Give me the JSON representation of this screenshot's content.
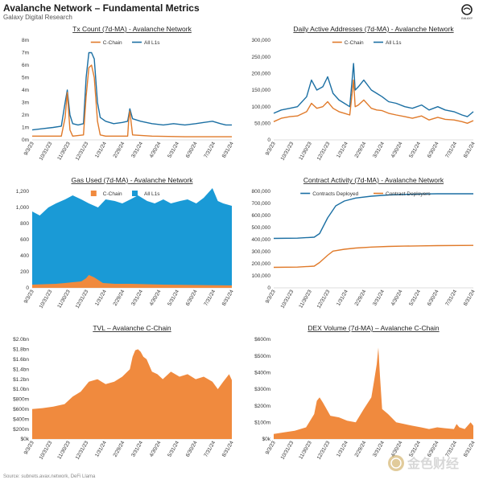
{
  "header": {
    "title": "Avalanche Network – Fundamental Metrics",
    "subtitle": "Galaxy Digital Research",
    "logo_icon": "galaxy-logo-icon",
    "logo_text": "GALAXY"
  },
  "footer": {
    "source": "Source: subnets.avax.network, DeFi Llama"
  },
  "watermark": {
    "text": "金色财经",
    "icon": "golden-coin-icon"
  },
  "colors": {
    "blue": "#1b6fa3",
    "orange": "#e07a2a",
    "fill_blue": "#1a9ad6",
    "fill_orange": "#f08a3e"
  },
  "date_ticks": [
    "9/3/23",
    "10/31/23",
    "11/30/23",
    "12/31/23",
    "1/31/24",
    "2/29/24",
    "3/31/24",
    "4/30/24",
    "5/31/24",
    "6/30/24",
    "7/31/24",
    "8/31/24"
  ],
  "chart_data": [
    {
      "id": "tx",
      "type": "line",
      "title": "Tx Count (7d-MA) - Avalanche Network",
      "x_range": [
        "2023-09-01",
        "2024-09-05"
      ],
      "y_ticks": [
        "0m",
        "1m",
        "2m",
        "3m",
        "4m",
        "5m",
        "6m",
        "7m",
        "8m"
      ],
      "ylim": [
        0,
        8000000
      ],
      "legend": [
        "C-Chain",
        "All L1s"
      ],
      "legend_placement": "top-center",
      "series": [
        {
          "name": "All L1s",
          "color": "#1b6fa3",
          "x": [
            "2023-09-01",
            "2023-09-20",
            "2023-10-10",
            "2023-10-25",
            "2023-11-01",
            "2023-11-05",
            "2023-11-10",
            "2023-11-15",
            "2023-11-25",
            "2023-12-05",
            "2023-12-10",
            "2023-12-15",
            "2023-12-20",
            "2023-12-25",
            "2023-12-31",
            "2024-01-05",
            "2024-01-15",
            "2024-01-30",
            "2024-02-15",
            "2024-02-25",
            "2024-02-29",
            "2024-03-05",
            "2024-03-20",
            "2024-04-10",
            "2024-05-01",
            "2024-05-20",
            "2024-06-10",
            "2024-06-30",
            "2024-07-15",
            "2024-07-31",
            "2024-08-15",
            "2024-08-25",
            "2024-09-05"
          ],
          "values": [
            800000,
            900000,
            1000000,
            1100000,
            3000000,
            4000000,
            2000000,
            1300000,
            1200000,
            1300000,
            5000000,
            7000000,
            7000000,
            6500000,
            3000000,
            1800000,
            1500000,
            1300000,
            1400000,
            1500000,
            2500000,
            1700000,
            1500000,
            1300000,
            1200000,
            1300000,
            1200000,
            1300000,
            1400000,
            1500000,
            1300000,
            1200000,
            1200000
          ]
        },
        {
          "name": "C-Chain",
          "color": "#e07a2a",
          "x": [
            "2023-09-01",
            "2023-10-25",
            "2023-11-01",
            "2023-11-05",
            "2023-11-10",
            "2023-11-15",
            "2023-12-05",
            "2023-12-10",
            "2023-12-15",
            "2023-12-20",
            "2023-12-25",
            "2023-12-31",
            "2024-01-05",
            "2024-01-15",
            "2024-02-25",
            "2024-02-27",
            "2024-02-29",
            "2024-03-05",
            "2024-04-10",
            "2024-06-10",
            "2024-09-05"
          ],
          "values": [
            300000,
            300000,
            1800000,
            3800000,
            800000,
            300000,
            400000,
            3500000,
            5800000,
            6000000,
            5000000,
            1500000,
            400000,
            300000,
            300000,
            1700000,
            2300000,
            400000,
            300000,
            250000,
            250000
          ]
        }
      ]
    },
    {
      "id": "daa",
      "type": "line",
      "title": "Daily Active Addresses (7d-MA) - Avalanche Network",
      "x_range": [
        "2023-09-01",
        "2024-09-05"
      ],
      "y_ticks": [
        "0",
        "50,000",
        "100,000",
        "150,000",
        "200,000",
        "250,000",
        "300,000"
      ],
      "ylim": [
        0,
        300000
      ],
      "legend": [
        "C-Chain",
        "All L1s"
      ],
      "legend_placement": "top-center",
      "series": [
        {
          "name": "All L1s",
          "color": "#1b6fa3",
          "x": [
            "2023-09-01",
            "2023-09-15",
            "2023-10-01",
            "2023-10-15",
            "2023-11-01",
            "2023-11-10",
            "2023-11-20",
            "2023-12-01",
            "2023-12-10",
            "2023-12-20",
            "2023-12-31",
            "2024-01-10",
            "2024-01-20",
            "2024-01-27",
            "2024-01-30",
            "2024-02-05",
            "2024-02-15",
            "2024-02-29",
            "2024-03-10",
            "2024-03-20",
            "2024-04-01",
            "2024-04-15",
            "2024-05-01",
            "2024-05-15",
            "2024-06-01",
            "2024-06-15",
            "2024-07-01",
            "2024-07-15",
            "2024-07-31",
            "2024-08-15",
            "2024-08-25",
            "2024-09-05"
          ],
          "values": [
            80000,
            90000,
            95000,
            100000,
            130000,
            180000,
            150000,
            160000,
            190000,
            140000,
            120000,
            110000,
            100000,
            230000,
            150000,
            160000,
            180000,
            150000,
            140000,
            130000,
            115000,
            110000,
            100000,
            95000,
            105000,
            90000,
            100000,
            90000,
            85000,
            75000,
            70000,
            85000
          ]
        },
        {
          "name": "C-Chain",
          "color": "#e07a2a",
          "x": [
            "2023-09-01",
            "2023-09-15",
            "2023-10-01",
            "2023-10-15",
            "2023-11-01",
            "2023-11-10",
            "2023-11-20",
            "2023-12-01",
            "2023-12-10",
            "2023-12-20",
            "2023-12-31",
            "2024-01-10",
            "2024-01-20",
            "2024-01-27",
            "2024-01-30",
            "2024-02-05",
            "2024-02-15",
            "2024-02-29",
            "2024-03-10",
            "2024-03-20",
            "2024-04-01",
            "2024-04-15",
            "2024-05-01",
            "2024-05-15",
            "2024-06-01",
            "2024-06-15",
            "2024-07-01",
            "2024-07-15",
            "2024-07-31",
            "2024-08-15",
            "2024-08-25",
            "2024-09-05"
          ],
          "values": [
            55000,
            65000,
            70000,
            72000,
            85000,
            110000,
            95000,
            100000,
            115000,
            95000,
            85000,
            80000,
            75000,
            180000,
            100000,
            105000,
            120000,
            95000,
            90000,
            88000,
            80000,
            75000,
            70000,
            65000,
            72000,
            60000,
            68000,
            62000,
            60000,
            55000,
            50000,
            58000
          ]
        }
      ]
    },
    {
      "id": "gas",
      "type": "area",
      "title": "Gas Used (7d-MA) - Avalanche Network",
      "x_range": [
        "2023-09-01",
        "2024-09-05"
      ],
      "y_ticks": [
        "0",
        "200",
        "400",
        "600",
        "800",
        "1,000",
        "1,200"
      ],
      "ylim": [
        0,
        1200
      ],
      "legend": [
        "C-Chain",
        "All L1s"
      ],
      "legend_placement": "top-center",
      "series": [
        {
          "name": "All L1s",
          "color": "#1a9ad6",
          "x": [
            "2023-09-01",
            "2023-09-15",
            "2023-10-01",
            "2023-10-15",
            "2023-11-01",
            "2023-11-15",
            "2023-12-01",
            "2023-12-15",
            "2024-01-01",
            "2024-01-15",
            "2024-02-01",
            "2024-02-15",
            "2024-03-01",
            "2024-03-15",
            "2024-04-01",
            "2024-04-15",
            "2024-05-01",
            "2024-05-15",
            "2024-06-01",
            "2024-06-15",
            "2024-07-01",
            "2024-07-15",
            "2024-07-31",
            "2024-08-10",
            "2024-08-20",
            "2024-09-05"
          ],
          "values": [
            950,
            900,
            1000,
            1050,
            1100,
            1150,
            1100,
            1050,
            1000,
            1100,
            1080,
            1050,
            1100,
            1150,
            1080,
            1050,
            1100,
            1050,
            1080,
            1100,
            1050,
            1120,
            1240,
            1080,
            1050,
            1020
          ]
        },
        {
          "name": "C-Chain",
          "color": "#f08a3e",
          "x": [
            "2023-09-01",
            "2023-10-15",
            "2023-11-01",
            "2023-11-15",
            "2023-12-01",
            "2023-12-10",
            "2023-12-15",
            "2023-12-25",
            "2024-01-10",
            "2024-02-01",
            "2024-03-01",
            "2024-05-01",
            "2024-09-05"
          ],
          "values": [
            40,
            50,
            60,
            70,
            80,
            120,
            160,
            130,
            60,
            50,
            50,
            40,
            30
          ]
        }
      ]
    },
    {
      "id": "contracts",
      "type": "line",
      "title": "Contract Activity (7d-MA) - Avalanche Network",
      "x_range": [
        "2023-09-01",
        "2024-09-05"
      ],
      "y_ticks": [
        "0",
        "100,000",
        "200,000",
        "300,000",
        "400,000",
        "500,000",
        "600,000",
        "700,000",
        "800,000"
      ],
      "ylim": [
        0,
        800000
      ],
      "legend": [
        "Contracts Deployed",
        "Contract Deployers"
      ],
      "legend_placement": "top-center",
      "series": [
        {
          "name": "Contracts Deployed",
          "color": "#1b6fa3",
          "x": [
            "2023-09-01",
            "2023-10-15",
            "2023-11-15",
            "2023-11-25",
            "2023-12-10",
            "2023-12-25",
            "2024-01-10",
            "2024-01-31",
            "2024-02-29",
            "2024-03-31",
            "2024-04-30",
            "2024-05-31",
            "2024-06-30",
            "2024-09-05"
          ],
          "values": [
            410000,
            412000,
            420000,
            450000,
            580000,
            680000,
            720000,
            745000,
            760000,
            770000,
            775000,
            778000,
            780000,
            780000
          ]
        },
        {
          "name": "Contract Deployers",
          "color": "#e07a2a",
          "x": [
            "2023-09-01",
            "2023-10-15",
            "2023-11-15",
            "2023-11-25",
            "2023-12-10",
            "2023-12-20",
            "2024-01-10",
            "2024-01-31",
            "2024-02-29",
            "2024-03-31",
            "2024-04-30",
            "2024-05-31",
            "2024-06-30",
            "2024-09-05"
          ],
          "values": [
            170000,
            172000,
            180000,
            210000,
            270000,
            305000,
            320000,
            330000,
            338000,
            343000,
            346000,
            348000,
            350000,
            352000
          ]
        }
      ]
    },
    {
      "id": "tvl",
      "type": "area",
      "title": "TVL – Avalanche C-Chain",
      "x_range": [
        "2023-09-01",
        "2024-09-05"
      ],
      "y_ticks": [
        "$0k",
        "$200m",
        "$400m",
        "$600m",
        "$800m",
        "$1.0bn",
        "$1.2bn",
        "$1.4bn",
        "$1.6bn",
        "$1.8bn",
        "$2.0bn"
      ],
      "ylim": [
        0,
        2000000000
      ],
      "series": [
        {
          "name": "",
          "color": "#f08a3e",
          "x": [
            "2023-09-01",
            "2023-09-20",
            "2023-10-10",
            "2023-10-31",
            "2023-11-15",
            "2023-11-30",
            "2023-12-15",
            "2023-12-31",
            "2024-01-15",
            "2024-01-31",
            "2024-02-15",
            "2024-02-29",
            "2024-03-05",
            "2024-03-10",
            "2024-03-15",
            "2024-03-20",
            "2024-03-25",
            "2024-03-31",
            "2024-04-10",
            "2024-04-20",
            "2024-04-30",
            "2024-05-15",
            "2024-05-31",
            "2024-06-15",
            "2024-06-30",
            "2024-07-15",
            "2024-07-31",
            "2024-08-10",
            "2024-08-20",
            "2024-08-31",
            "2024-09-05"
          ],
          "values": [
            600000000,
            620000000,
            650000000,
            700000000,
            850000000,
            950000000,
            1150000000,
            1200000000,
            1100000000,
            1150000000,
            1250000000,
            1400000000,
            1650000000,
            1780000000,
            1800000000,
            1750000000,
            1650000000,
            1600000000,
            1350000000,
            1300000000,
            1200000000,
            1350000000,
            1250000000,
            1300000000,
            1200000000,
            1250000000,
            1150000000,
            1000000000,
            1150000000,
            1300000000,
            1180000000
          ]
        }
      ]
    },
    {
      "id": "dex",
      "type": "area",
      "title": "DEX Volume (7d-MA) – Avalanche C-Chain",
      "x_range": [
        "2023-09-01",
        "2024-09-05"
      ],
      "y_ticks": [
        "$0k",
        "$100m",
        "$200m",
        "$300m",
        "$400m",
        "$500m",
        "$600m"
      ],
      "ylim": [
        0,
        600000000
      ],
      "series": [
        {
          "name": "",
          "color": "#f08a3e",
          "x": [
            "2023-09-01",
            "2023-09-20",
            "2023-10-10",
            "2023-10-31",
            "2023-11-15",
            "2023-11-20",
            "2023-11-25",
            "2023-12-01",
            "2023-12-15",
            "2023-12-31",
            "2024-01-15",
            "2024-01-31",
            "2024-02-15",
            "2024-02-29",
            "2024-03-05",
            "2024-03-10",
            "2024-03-13",
            "2024-03-16",
            "2024-03-20",
            "2024-03-31",
            "2024-04-15",
            "2024-04-30",
            "2024-05-15",
            "2024-05-31",
            "2024-06-15",
            "2024-06-30",
            "2024-07-15",
            "2024-07-31",
            "2024-08-05",
            "2024-08-10",
            "2024-08-20",
            "2024-08-31",
            "2024-09-05"
          ],
          "values": [
            30000000,
            40000000,
            50000000,
            70000000,
            150000000,
            230000000,
            250000000,
            220000000,
            140000000,
            130000000,
            110000000,
            100000000,
            180000000,
            250000000,
            350000000,
            450000000,
            550000000,
            380000000,
            180000000,
            150000000,
            100000000,
            90000000,
            80000000,
            70000000,
            60000000,
            70000000,
            65000000,
            60000000,
            90000000,
            70000000,
            60000000,
            100000000,
            80000000
          ]
        }
      ]
    }
  ]
}
